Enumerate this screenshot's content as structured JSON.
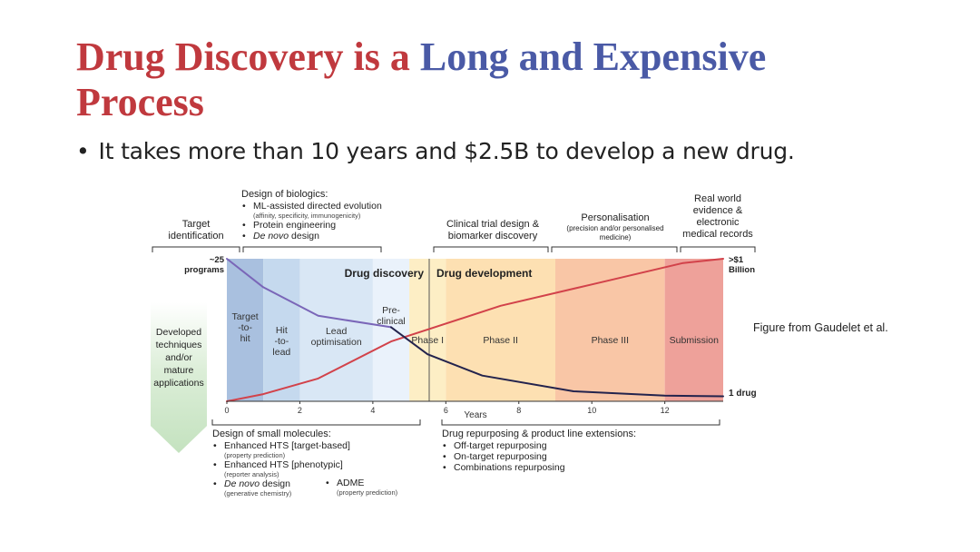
{
  "slide": {
    "title_part1": "Drug Discovery is a ",
    "title_part2": "Long and ",
    "title_part3": "Expensive",
    "title_part4": "Process",
    "bullet_symbol": "•",
    "bullet": "It takes more than 10 years and $2.5B to develop a new drug.",
    "figure_caption": "Figure from Gaudelet et al."
  },
  "figure": {
    "colors": {
      "title_red": "#c0393e",
      "title_blue": "#4a5aa6",
      "red_curve": "#d2424a",
      "purple_curve": "#7a66b8",
      "navy_curve": "#23234d"
    },
    "headers": {
      "target_identification": [
        "Target",
        "identification"
      ],
      "biologics_title": "Design of biologics:",
      "biologics_items": [
        {
          "text": "ML-assisted directed evolution",
          "sub": "(affinity, specificity, immunogenicity)",
          "italic": false
        },
        {
          "text": "Protein engineering",
          "sub": "",
          "italic": false
        },
        {
          "text": "De novo",
          "rest": " design",
          "sub": "",
          "italic": true
        }
      ],
      "clinical_trial": [
        "Clinical trial design &",
        "biomarker discovery"
      ],
      "personalisation": "Personalisation",
      "personalisation_sub": [
        "(precision and/or personalised",
        "medicine)"
      ],
      "real_world": [
        "Real world",
        "evidence &",
        "electronic",
        "medical records"
      ]
    },
    "chart_data": {
      "type": "line",
      "xlabel": "Years",
      "x_ticks": [
        0,
        2,
        4,
        6,
        8,
        10,
        12
      ],
      "xlim": [
        0,
        13.6
      ],
      "start_label_top": "~25",
      "start_label_bottom": "programs",
      "end_top_label_1": ">$1",
      "end_top_label_2": "Billion",
      "end_bottom_label": "1 drug",
      "section_labels": [
        "Drug discovery",
        "Drug development"
      ],
      "phases": [
        {
          "label": "Target\n-to-\nhit",
          "start": 0,
          "end": 1,
          "color": "#a9c0df"
        },
        {
          "label": "Hit\n-to-\nlead",
          "start": 1,
          "end": 2,
          "color": "#c5d9ee"
        },
        {
          "label": "Lead\noptimisation",
          "start": 2,
          "end": 4,
          "color": "#d9e7f5"
        },
        {
          "label": "Pre-\nclinical",
          "start": 4,
          "end": 5,
          "color": "#eaf2fb"
        },
        {
          "label": "Phase I",
          "start": 5,
          "end": 6,
          "color": "#fdeec5"
        },
        {
          "label": "Phase II",
          "start": 6,
          "end": 9,
          "color": "#fde0b2"
        },
        {
          "label": "Phase III",
          "start": 9,
          "end": 12,
          "color": "#f9c6a6"
        },
        {
          "label": "Submission",
          "start": 12,
          "end": 13.6,
          "color": "#eea19a"
        }
      ],
      "series": [
        {
          "role": "cost",
          "color": "#d2424a",
          "x": [
            0,
            1,
            2.5,
            4.5,
            7.5,
            10,
            12.5,
            13.6
          ],
          "y": [
            0,
            0.05,
            0.16,
            0.42,
            0.67,
            0.82,
            0.97,
            1.0
          ]
        },
        {
          "role": "programs-discovery",
          "color": "#7a66b8",
          "x": [
            0,
            1,
            2.5,
            4.5
          ],
          "y": [
            1.0,
            0.8,
            0.6,
            0.52
          ]
        },
        {
          "role": "programs-development",
          "color": "#23234d",
          "x": [
            4.5,
            5.5,
            7,
            9.5,
            12,
            13.6
          ],
          "y": [
            0.52,
            0.33,
            0.18,
            0.07,
            0.04,
            0.035
          ]
        }
      ]
    },
    "bottom": {
      "small_molecules_title": "Design of small molecules:",
      "small_molecules_items": [
        {
          "text": "Enhanced HTS [target-based]",
          "sub": "(property prediction)",
          "italic": false
        },
        {
          "text": "Enhanced HTS [phenotypic]",
          "sub": "(reporter analysis)",
          "italic": false
        },
        {
          "text": "De novo",
          "rest": " design",
          "sub": "(generative chemistry)",
          "italic": true
        }
      ],
      "adme": "ADME",
      "adme_sub": "(property prediction)",
      "repurposing_title": "Drug repurposing & product line extensions:",
      "repurposing_items": [
        "Off-target repurposing",
        "On-target repurposing",
        "Combinations repurposing"
      ]
    },
    "developed_text": [
      "Developed",
      "techniques",
      "and/or",
      "mature",
      "applications"
    ]
  }
}
